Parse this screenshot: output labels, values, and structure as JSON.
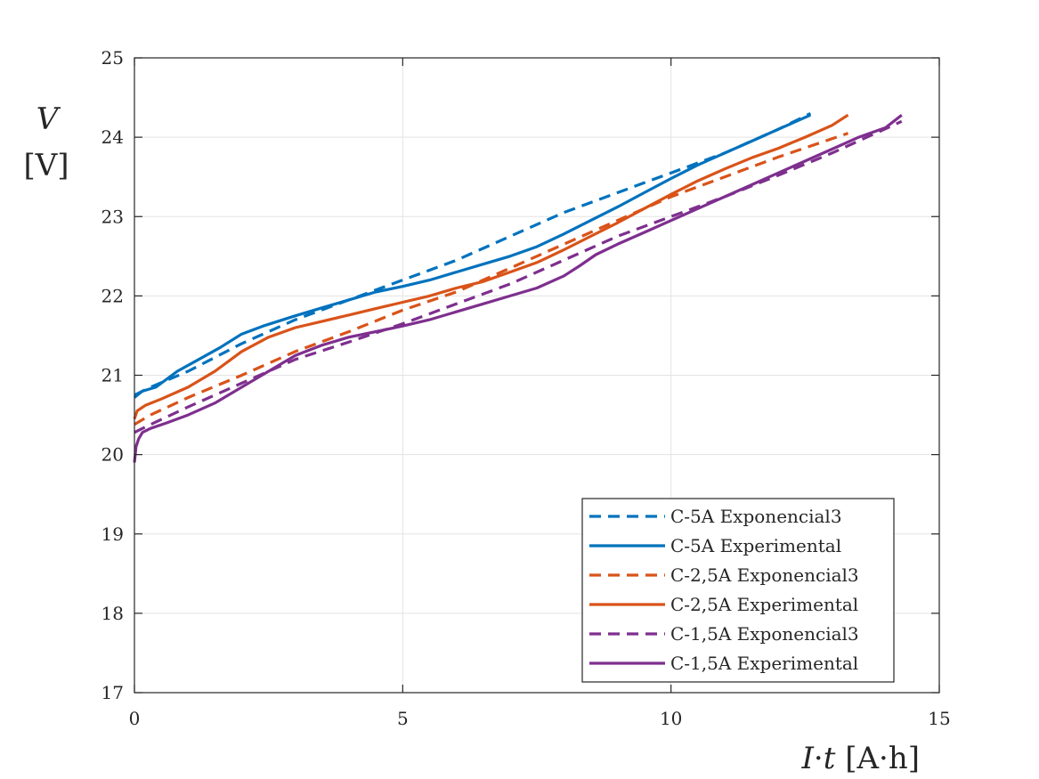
{
  "chart_data": {
    "type": "line",
    "title": "",
    "xlabel_parts": {
      "italic_1": "I",
      "dot": "·",
      "italic_2": "t",
      "unit": "[A·h]"
    },
    "ylabel_parts": {
      "symbol": "V",
      "unit": "[V]"
    },
    "xlim": [
      0,
      15
    ],
    "ylim": [
      17,
      25
    ],
    "xticks": [
      0,
      5,
      10,
      15
    ],
    "yticks": [
      17,
      18,
      19,
      20,
      21,
      22,
      23,
      24,
      25
    ],
    "grid": true,
    "legend_position": "bottom-right",
    "series": [
      {
        "name": "C-5A Exponencial3",
        "color": "#0072BD",
        "style": "dashed",
        "x": [
          0,
          0.3,
          1,
          2,
          3,
          4,
          5,
          6,
          7,
          8,
          9,
          10,
          11,
          12,
          12.6
        ],
        "y": [
          20.75,
          20.85,
          21.05,
          21.4,
          21.7,
          21.95,
          22.2,
          22.45,
          22.75,
          23.05,
          23.3,
          23.55,
          23.8,
          24.1,
          24.3
        ]
      },
      {
        "name": "C-5A Experimental",
        "color": "#0072BD",
        "style": "solid",
        "x": [
          0,
          0.15,
          0.4,
          0.8,
          1.2,
          1.6,
          2,
          2.4,
          3,
          3.5,
          4,
          4.5,
          5,
          5.5,
          6,
          6.5,
          7,
          7.5,
          8,
          8.5,
          9,
          9.5,
          10,
          10.5,
          11,
          11.5,
          12,
          12.6
        ],
        "y": [
          20.72,
          20.8,
          20.85,
          21.05,
          21.2,
          21.35,
          21.52,
          21.62,
          21.75,
          21.85,
          21.95,
          22.05,
          22.12,
          22.2,
          22.3,
          22.4,
          22.5,
          22.62,
          22.78,
          22.95,
          23.12,
          23.3,
          23.48,
          23.65,
          23.8,
          23.95,
          24.1,
          24.28
        ]
      },
      {
        "name": "C-2,5A Exponencial3",
        "color": "#D95319",
        "style": "dashed",
        "x": [
          0,
          0.3,
          1,
          2,
          3,
          4,
          5,
          6,
          7,
          8,
          9,
          10,
          11,
          12,
          13.3
        ],
        "y": [
          20.38,
          20.5,
          20.72,
          21.0,
          21.3,
          21.55,
          21.82,
          22.05,
          22.35,
          22.65,
          22.95,
          23.25,
          23.5,
          23.75,
          24.05
        ]
      },
      {
        "name": "C-2,5A Experimental",
        "color": "#D95319",
        "style": "solid",
        "x": [
          0,
          0.05,
          0.2,
          0.5,
          1,
          1.5,
          2,
          2.5,
          3,
          3.5,
          4,
          4.5,
          5,
          5.5,
          6,
          6.5,
          7,
          7.5,
          8,
          8.5,
          9,
          9.5,
          10,
          10.5,
          11,
          11.5,
          12,
          12.5,
          13,
          13.3
        ],
        "y": [
          20.45,
          20.55,
          20.62,
          20.7,
          20.85,
          21.05,
          21.3,
          21.48,
          21.6,
          21.68,
          21.76,
          21.84,
          21.92,
          22.0,
          22.1,
          22.18,
          22.3,
          22.42,
          22.58,
          22.75,
          22.92,
          23.1,
          23.28,
          23.45,
          23.6,
          23.74,
          23.86,
          24.0,
          24.15,
          24.28
        ]
      },
      {
        "name": "C-1,5A Exponencial3",
        "color": "#7E2F8E",
        "style": "dashed",
        "x": [
          0,
          0.3,
          1,
          2,
          3,
          4,
          5,
          6,
          7,
          8,
          9,
          10,
          11,
          12,
          13,
          14.3
        ],
        "y": [
          20.28,
          20.38,
          20.6,
          20.9,
          21.2,
          21.42,
          21.65,
          21.9,
          22.15,
          22.45,
          22.75,
          23.0,
          23.25,
          23.52,
          23.8,
          24.2
        ]
      },
      {
        "name": "C-1,5A Experimental",
        "color": "#7E2F8E",
        "style": "solid",
        "x": [
          0,
          0.03,
          0.08,
          0.15,
          0.3,
          0.6,
          1,
          1.5,
          2,
          2.5,
          3,
          3.5,
          4,
          4.5,
          5,
          5.5,
          6,
          6.5,
          7,
          7.5,
          8,
          8.3,
          8.6,
          9,
          9.5,
          10,
          10.5,
          11,
          11.5,
          12,
          12.5,
          13,
          13.5,
          14,
          14.3
        ],
        "y": [
          19.9,
          20.1,
          20.2,
          20.28,
          20.33,
          20.4,
          20.5,
          20.65,
          20.85,
          21.05,
          21.25,
          21.38,
          21.48,
          21.55,
          21.62,
          21.7,
          21.8,
          21.9,
          22.0,
          22.1,
          22.25,
          22.38,
          22.52,
          22.65,
          22.8,
          22.95,
          23.1,
          23.25,
          23.4,
          23.55,
          23.7,
          23.85,
          24.0,
          24.12,
          24.28
        ]
      }
    ]
  }
}
